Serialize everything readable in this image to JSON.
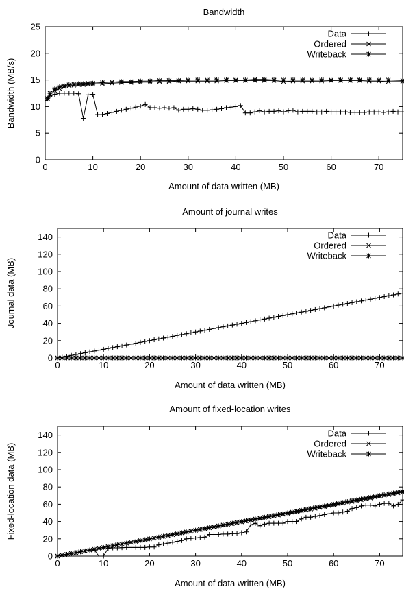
{
  "chart_data": [
    {
      "type": "line",
      "title": "Bandwidth",
      "xlabel": "Amount of data written (MB)",
      "ylabel": "Bandwidth (MB/s)",
      "xlim": [
        0,
        75
      ],
      "ylim": [
        0,
        25
      ],
      "xticks": [
        0,
        10,
        20,
        30,
        40,
        50,
        60,
        70
      ],
      "yticks": [
        0,
        5,
        10,
        15,
        20,
        25
      ],
      "grid": false,
      "legend": "top-right",
      "series": [
        {
          "name": "Data",
          "marker": "plus",
          "points": [
            [
              0.5,
              11.5
            ],
            [
              1,
              12
            ],
            [
              2,
              12.3
            ],
            [
              3,
              12.5
            ],
            [
              4,
              12.5
            ],
            [
              5,
              12.5
            ],
            [
              6,
              12.5
            ],
            [
              7,
              12.4
            ],
            [
              8,
              7.8
            ],
            [
              9,
              12.2
            ],
            [
              10,
              12.3
            ],
            [
              11,
              8.5
            ],
            [
              12,
              8.5
            ],
            [
              13,
              8.7
            ],
            [
              14,
              8.9
            ],
            [
              15,
              9.1
            ],
            [
              16,
              9.3
            ],
            [
              17,
              9.5
            ],
            [
              18,
              9.7
            ],
            [
              19,
              9.9
            ],
            [
              20,
              10.1
            ],
            [
              21,
              10.4
            ],
            [
              22,
              9.8
            ],
            [
              23,
              9.8
            ],
            [
              24,
              9.7
            ],
            [
              25,
              9.8
            ],
            [
              26,
              9.7
            ],
            [
              27,
              9.8
            ],
            [
              28,
              9.3
            ],
            [
              29,
              9.5
            ],
            [
              30,
              9.5
            ],
            [
              31,
              9.6
            ],
            [
              32,
              9.5
            ],
            [
              33,
              9.3
            ],
            [
              34,
              9.3
            ],
            [
              35,
              9.4
            ],
            [
              36,
              9.5
            ],
            [
              37,
              9.6
            ],
            [
              38,
              9.8
            ],
            [
              39,
              9.9
            ],
            [
              40,
              10
            ],
            [
              41,
              10.2
            ],
            [
              42,
              8.8
            ],
            [
              43,
              8.8
            ],
            [
              44,
              9
            ],
            [
              45,
              9.2
            ],
            [
              46,
              9
            ],
            [
              47,
              9.1
            ],
            [
              48,
              9.1
            ],
            [
              49,
              9.2
            ],
            [
              50,
              9
            ],
            [
              51,
              9.2
            ],
            [
              52,
              9.3
            ],
            [
              53,
              9
            ],
            [
              54,
              9.1
            ],
            [
              55,
              9.1
            ],
            [
              56,
              9.1
            ],
            [
              57,
              9
            ],
            [
              58,
              9
            ],
            [
              59,
              9.1
            ],
            [
              60,
              9
            ],
            [
              61,
              9
            ],
            [
              62,
              9
            ],
            [
              63,
              9
            ],
            [
              64,
              8.9
            ],
            [
              65,
              8.9
            ],
            [
              66,
              8.9
            ],
            [
              67,
              8.9
            ],
            [
              68,
              9
            ],
            [
              69,
              9
            ],
            [
              70,
              9
            ],
            [
              71,
              8.9
            ],
            [
              72,
              9
            ],
            [
              73,
              9.1
            ],
            [
              74,
              9
            ],
            [
              75,
              9
            ]
          ]
        },
        {
          "name": "Ordered",
          "marker": "cross",
          "points": [
            [
              0.5,
              11.5
            ],
            [
              1,
              12.2
            ],
            [
              2,
              13
            ],
            [
              3,
              13.4
            ],
            [
              4,
              13.7
            ],
            [
              5,
              13.9
            ],
            [
              6,
              14
            ],
            [
              7,
              14.1
            ],
            [
              8,
              14.1
            ],
            [
              9,
              14.2
            ],
            [
              10,
              14.2
            ],
            [
              12,
              14.3
            ],
            [
              14,
              14.4
            ],
            [
              16,
              14.5
            ],
            [
              18,
              14.5
            ],
            [
              20,
              14.6
            ],
            [
              22,
              14.6
            ],
            [
              24,
              14.7
            ],
            [
              26,
              14.7
            ],
            [
              28,
              14.8
            ],
            [
              30,
              14.8
            ],
            [
              32,
              14.8
            ],
            [
              34,
              14.8
            ],
            [
              36,
              14.8
            ],
            [
              38,
              14.9
            ],
            [
              40,
              14.9
            ],
            [
              42,
              14.9
            ],
            [
              44,
              14.9
            ],
            [
              46,
              14.9
            ],
            [
              48,
              14.9
            ],
            [
              50,
              14.7
            ],
            [
              52,
              14.8
            ],
            [
              54,
              14.8
            ],
            [
              56,
              14.8
            ],
            [
              58,
              14.8
            ],
            [
              60,
              14.9
            ],
            [
              62,
              14.9
            ],
            [
              64,
              14.9
            ],
            [
              66,
              14.9
            ],
            [
              68,
              14.8
            ],
            [
              70,
              14.8
            ],
            [
              72,
              14.7
            ],
            [
              75,
              14.7
            ]
          ]
        },
        {
          "name": "Writeback",
          "marker": "star",
          "points": [
            [
              0.5,
              11.4
            ],
            [
              1,
              12.5
            ],
            [
              2,
              13.3
            ],
            [
              3,
              13.7
            ],
            [
              4,
              13.9
            ],
            [
              5,
              14.1
            ],
            [
              6,
              14.2
            ],
            [
              7,
              14.3
            ],
            [
              8,
              14.3
            ],
            [
              9,
              14.4
            ],
            [
              10,
              14.4
            ],
            [
              12,
              14.5
            ],
            [
              14,
              14.6
            ],
            [
              16,
              14.7
            ],
            [
              18,
              14.7
            ],
            [
              20,
              14.8
            ],
            [
              22,
              14.8
            ],
            [
              24,
              14.9
            ],
            [
              26,
              14.9
            ],
            [
              28,
              14.9
            ],
            [
              30,
              15
            ],
            [
              32,
              15
            ],
            [
              34,
              15
            ],
            [
              36,
              15
            ],
            [
              38,
              15
            ],
            [
              40,
              15
            ],
            [
              42,
              15
            ],
            [
              44,
              15.1
            ],
            [
              46,
              15.1
            ],
            [
              48,
              15
            ],
            [
              50,
              15
            ],
            [
              52,
              15
            ],
            [
              54,
              15
            ],
            [
              56,
              15
            ],
            [
              58,
              15
            ],
            [
              60,
              15
            ],
            [
              62,
              15
            ],
            [
              64,
              15
            ],
            [
              66,
              15
            ],
            [
              68,
              15
            ],
            [
              70,
              15
            ],
            [
              72,
              15
            ],
            [
              75,
              14.9
            ]
          ]
        }
      ]
    },
    {
      "type": "line",
      "title": "Amount of journal writes",
      "xlabel": "Amount of data written (MB)",
      "ylabel": "Journal data (MB)",
      "xlim": [
        0,
        75
      ],
      "ylim": [
        0,
        150
      ],
      "xticks": [
        0,
        10,
        20,
        30,
        40,
        50,
        60,
        70
      ],
      "yticks": [
        0,
        20,
        40,
        60,
        80,
        100,
        120,
        140
      ],
      "grid": false,
      "legend": "top-right",
      "series": [
        {
          "name": "Data",
          "marker": "plus",
          "points": [
            [
              0,
              0
            ],
            [
              75,
              75
            ]
          ],
          "marker_step": 1
        },
        {
          "name": "Ordered",
          "marker": "cross",
          "points": [
            [
              0,
              0
            ],
            [
              75,
              0
            ]
          ],
          "marker_step": 1
        },
        {
          "name": "Writeback",
          "marker": "star",
          "points": [
            [
              0,
              0
            ],
            [
              75,
              0
            ]
          ],
          "marker_step": 1
        }
      ]
    },
    {
      "type": "line",
      "title": "Amount of fixed-location writes",
      "xlabel": "Amount of data written (MB)",
      "ylabel": "Fixed-location data (MB)",
      "xlim": [
        0,
        75
      ],
      "ylim": [
        0,
        150
      ],
      "xticks": [
        0,
        10,
        20,
        30,
        40,
        50,
        60,
        70
      ],
      "yticks": [
        0,
        20,
        40,
        60,
        80,
        100,
        120,
        140
      ],
      "grid": false,
      "legend": "top-right",
      "series": [
        {
          "name": "Data",
          "marker": "plus",
          "points": [
            [
              0,
              0
            ],
            [
              1,
              1
            ],
            [
              2,
              2
            ],
            [
              3,
              3
            ],
            [
              4,
              4
            ],
            [
              5,
              5
            ],
            [
              6,
              6
            ],
            [
              7,
              7
            ],
            [
              8,
              7
            ],
            [
              9,
              0
            ],
            [
              10,
              0
            ],
            [
              11,
              9
            ],
            [
              12,
              9.5
            ],
            [
              13,
              9.5
            ],
            [
              14,
              9.8
            ],
            [
              15,
              10
            ],
            [
              16,
              10
            ],
            [
              17,
              10
            ],
            [
              18,
              10
            ],
            [
              19,
              10
            ],
            [
              20,
              10.5
            ],
            [
              21,
              10.5
            ],
            [
              22,
              13
            ],
            [
              23,
              14
            ],
            [
              24,
              15
            ],
            [
              25,
              16
            ],
            [
              26,
              17
            ],
            [
              27,
              18
            ],
            [
              28,
              20
            ],
            [
              29,
              20.5
            ],
            [
              30,
              21
            ],
            [
              31,
              21.5
            ],
            [
              32,
              22
            ],
            [
              33,
              25
            ],
            [
              34,
              25
            ],
            [
              35,
              25
            ],
            [
              36,
              25.5
            ],
            [
              37,
              25.5
            ],
            [
              38,
              26
            ],
            [
              39,
              26
            ],
            [
              40,
              27
            ],
            [
              41,
              28
            ],
            [
              42,
              36
            ],
            [
              43,
              38
            ],
            [
              44,
              35
            ],
            [
              45,
              37
            ],
            [
              46,
              38
            ],
            [
              47,
              38
            ],
            [
              48,
              38
            ],
            [
              49,
              38
            ],
            [
              50,
              40
            ],
            [
              51,
              40
            ],
            [
              52,
              40
            ],
            [
              53,
              43
            ],
            [
              54,
              45
            ],
            [
              55,
              45
            ],
            [
              56,
              46
            ],
            [
              57,
              47
            ],
            [
              58,
              48
            ],
            [
              59,
              49
            ],
            [
              60,
              50
            ],
            [
              61,
              50
            ],
            [
              62,
              51
            ],
            [
              63,
              52
            ],
            [
              64,
              55
            ],
            [
              65,
              56
            ],
            [
              66,
              58
            ],
            [
              67,
              59
            ],
            [
              68,
              59
            ],
            [
              69,
              58
            ],
            [
              70,
              60
            ],
            [
              71,
              61
            ],
            [
              72,
              61
            ],
            [
              73,
              58
            ],
            [
              74,
              60
            ],
            [
              75,
              65
            ]
          ]
        },
        {
          "name": "Ordered",
          "marker": "cross",
          "points": [
            [
              0,
              0
            ],
            [
              75,
              74
            ]
          ],
          "marker_step": 1
        },
        {
          "name": "Writeback",
          "marker": "star",
          "points": [
            [
              0,
              0
            ],
            [
              75,
              75
            ]
          ],
          "marker_step": 1
        }
      ]
    }
  ]
}
